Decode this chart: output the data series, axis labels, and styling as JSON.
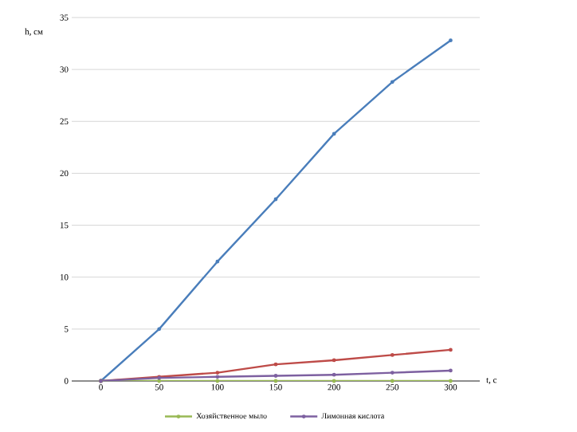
{
  "chart_data": {
    "type": "line",
    "xlabel": "t, c",
    "ylabel": "h,  см",
    "categories": [
      "0",
      "50",
      "100",
      "150",
      "200",
      "250",
      "300"
    ],
    "ylim": [
      0,
      35
    ],
    "yticks": [
      0,
      5,
      10,
      15,
      20,
      25,
      30,
      35
    ],
    "grid": "y",
    "legend": "bottom",
    "marker": "circle",
    "series": [
      {
        "color": "#4a7ebb",
        "values": [
          0,
          5,
          11.5,
          17.5,
          23.8,
          28.8,
          32.8
        ]
      },
      {
        "color": "#be4b48",
        "values": [
          0,
          0.4,
          0.8,
          1.6,
          2.0,
          2.5,
          3.0
        ]
      },
      {
        "name": "Хозяйственное мыло",
        "color": "#98b954",
        "values": [
          0,
          0,
          0,
          0,
          0,
          0,
          0
        ]
      },
      {
        "name": "Лимонная кислота",
        "color": "#7d60a0",
        "values": [
          0,
          0.3,
          0.4,
          0.5,
          0.6,
          0.8,
          1.0
        ]
      }
    ]
  }
}
